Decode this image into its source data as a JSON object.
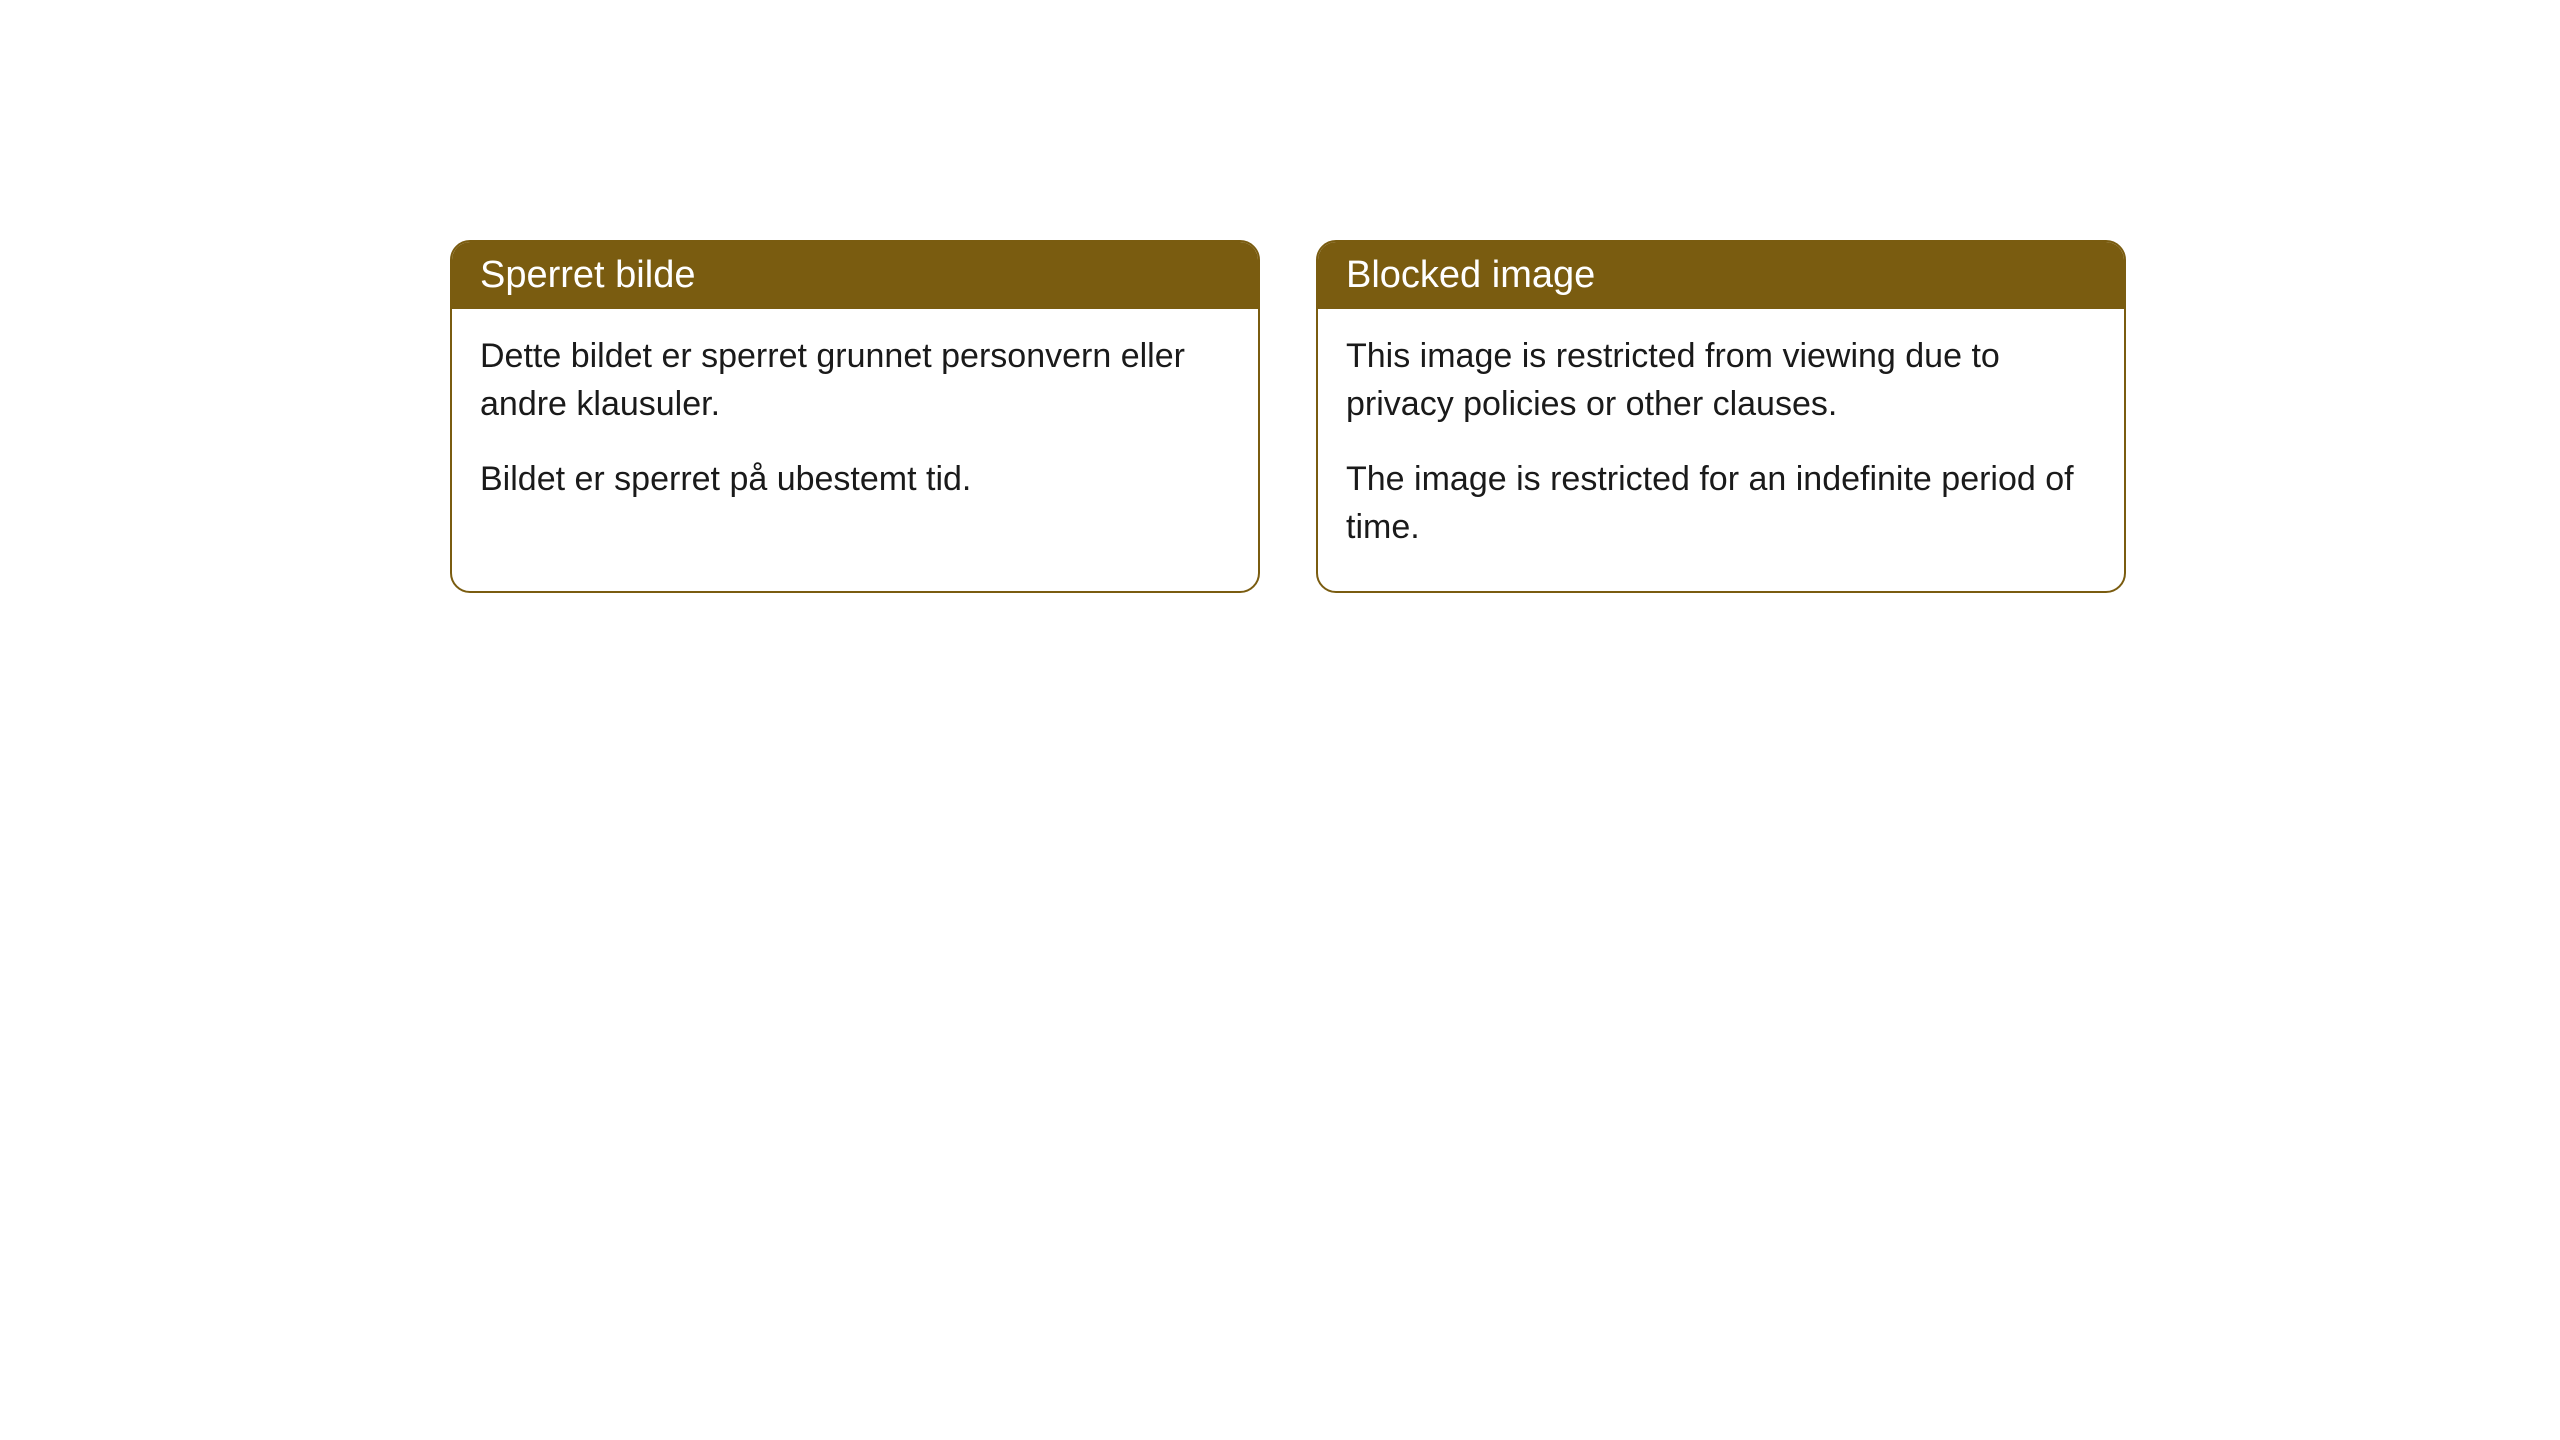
{
  "cards": [
    {
      "title": "Sperret bilde",
      "paragraph1": "Dette bildet er sperret grunnet personvern eller andre klausuler.",
      "paragraph2": "Bildet er sperret på ubestemt tid."
    },
    {
      "title": "Blocked image",
      "paragraph1": "This image is restricted from viewing due to privacy policies or other clauses.",
      "paragraph2": "The image is restricted for an indefinite period of time."
    }
  ],
  "styling": {
    "header_bg_color": "#7a5c10",
    "header_text_color": "#ffffff",
    "border_color": "#7a5c10",
    "body_text_color": "#1a1a1a",
    "background_color": "#ffffff",
    "border_radius": 20,
    "title_fontsize": 38,
    "body_fontsize": 34
  }
}
